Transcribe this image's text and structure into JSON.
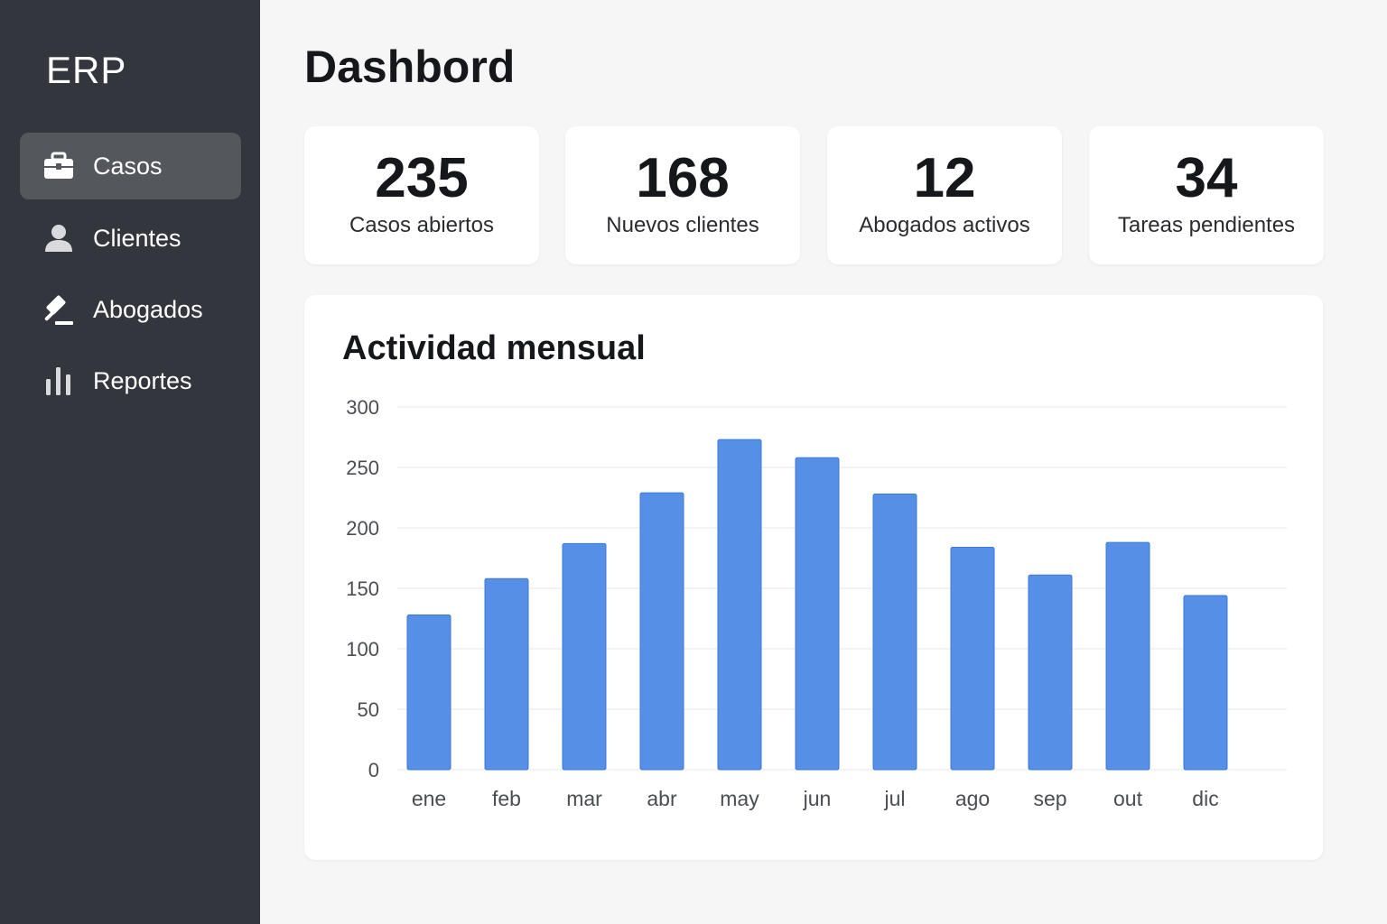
{
  "sidebar": {
    "brand": "ERP",
    "items": [
      {
        "label": "Casos",
        "icon": "briefcase-icon",
        "active": true
      },
      {
        "label": "Clientes",
        "icon": "user-icon",
        "active": false
      },
      {
        "label": "Abogados",
        "icon": "gavel-icon",
        "active": false
      },
      {
        "label": "Reportes",
        "icon": "bar-chart-icon",
        "active": false
      }
    ]
  },
  "main": {
    "title": "Dashbord",
    "stats": [
      {
        "value": "235",
        "label": "Casos abiertos"
      },
      {
        "value": "168",
        "label": "Nuevos clientes"
      },
      {
        "value": "12",
        "label": "Abogados activos"
      },
      {
        "value": "34",
        "label": "Tareas pendientes"
      }
    ]
  },
  "chart_title": "Actividad mensual",
  "colors": {
    "sidebar": "#33373d",
    "sidebar_active": "#54585d",
    "bar": "#5690e6",
    "background": "#f6f6f6"
  },
  "chart_data": {
    "type": "bar",
    "title": "Actividad mensual",
    "categories": [
      "ene",
      "feb",
      "mar",
      "abr",
      "may",
      "jun",
      "jul",
      "ago",
      "sep",
      "out",
      "dic"
    ],
    "values": [
      128,
      158,
      187,
      229,
      273,
      258,
      228,
      184,
      161,
      188,
      144
    ],
    "yticks": [
      0,
      50,
      100,
      150,
      200,
      250,
      300
    ],
    "ylim": [
      0,
      300
    ],
    "grid": true,
    "legend": "none"
  }
}
